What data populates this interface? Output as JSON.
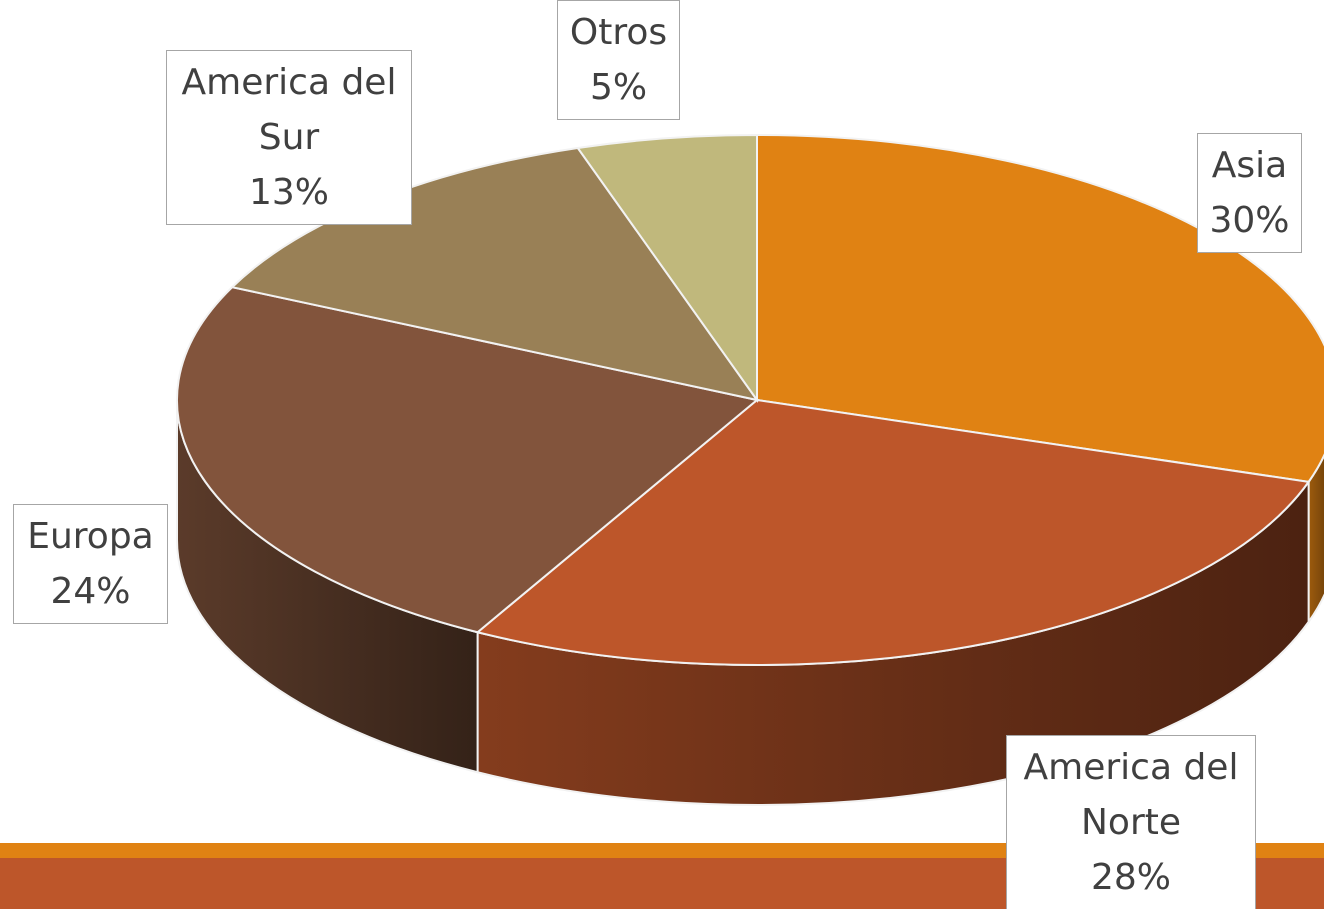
{
  "chart_data": {
    "type": "pie3d",
    "categories": [
      "Asia",
      "America del Norte",
      "Europa",
      "America del Sur",
      "Otros"
    ],
    "values": [
      30,
      28,
      24,
      13,
      5
    ],
    "value_labels": [
      "30%",
      "28%",
      "24%",
      "13%",
      "5%"
    ],
    "colors": [
      "#e08213",
      "#bd562a",
      "#82543c",
      "#998056",
      "#c0b87c"
    ]
  }
}
